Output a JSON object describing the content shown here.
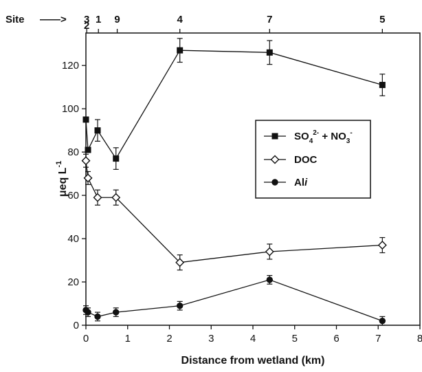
{
  "chart_data": {
    "type": "line",
    "xlabel": "Distance from wetland (km)",
    "ylabel_parts": [
      "μ",
      "eq L",
      "-1"
    ],
    "xlim": [
      0,
      8
    ],
    "ylim": [
      0,
      135
    ],
    "x_ticks": [
      0,
      1,
      2,
      3,
      4,
      5,
      6,
      7,
      8
    ],
    "y_ticks": [
      0,
      20,
      40,
      60,
      80,
      100,
      120
    ],
    "grid": false,
    "legend_position": "center-right",
    "site_axis": {
      "label": "Site",
      "arrow": "——>",
      "sites": [
        {
          "x": 0.02,
          "label": "3"
        },
        {
          "x": 0.02,
          "label": "2"
        },
        {
          "x": 0.3,
          "label": "1"
        },
        {
          "x": 0.75,
          "label": "9"
        },
        {
          "x": 2.25,
          "label": "4"
        },
        {
          "x": 4.4,
          "label": "7"
        },
        {
          "x": 7.1,
          "label": "5"
        }
      ]
    },
    "series": [
      {
        "name_parts": [
          "SO",
          "4",
          "2-",
          " + NO",
          "3",
          "-"
        ],
        "marker": "square-filled",
        "x": [
          0.0,
          0.05,
          0.28,
          0.72,
          2.25,
          4.4,
          7.1
        ],
        "y": [
          95,
          81,
          90,
          77,
          127,
          126,
          111
        ],
        "err": [
          0,
          0,
          5,
          5,
          5.5,
          5.5,
          5
        ]
      },
      {
        "name": "DOC",
        "marker": "diamond-open",
        "x": [
          0.0,
          0.05,
          0.28,
          0.72,
          2.25,
          4.4,
          7.1
        ],
        "y": [
          76,
          68,
          59,
          59,
          29,
          34,
          37
        ],
        "err": [
          3,
          3,
          3.5,
          3.5,
          3.5,
          3.5,
          3.5
        ]
      },
      {
        "name_parts": [
          "Al",
          "i"
        ],
        "marker": "circle-filled",
        "x": [
          0.0,
          0.05,
          0.28,
          0.72,
          2.25,
          4.4,
          7.1
        ],
        "y": [
          7,
          6,
          4,
          6,
          9,
          21,
          2
        ],
        "err": [
          2,
          2,
          2,
          2,
          2,
          2,
          2
        ]
      }
    ]
  }
}
